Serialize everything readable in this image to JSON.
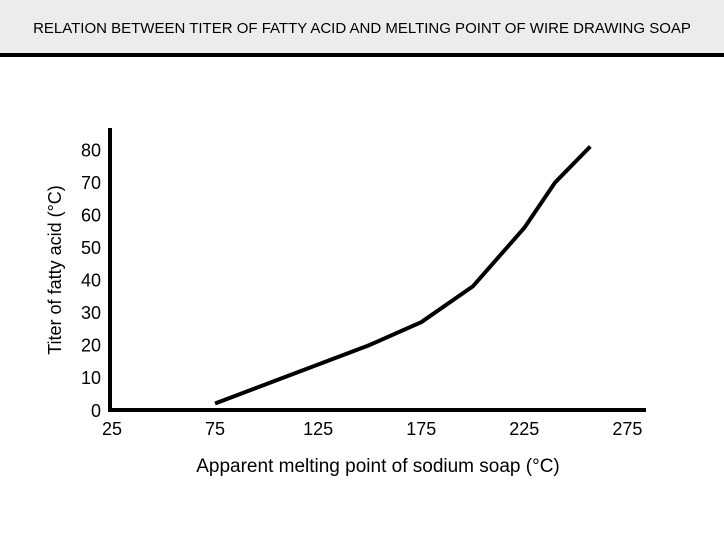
{
  "chart_data": {
    "type": "line",
    "title": "RELATION BETWEEN TITER OF FATTY ACID AND MELTING POINT OF WIRE DRAWING SOAP",
    "x_label": "Apparent melting point of sodium soap (°C)",
    "y_label": "Titer of fatty acid (°C)",
    "x": [
      75,
      100,
      125,
      150,
      175,
      200,
      225,
      240,
      257
    ],
    "series": [
      {
        "color": "#000000",
        "values": [
          2,
          8,
          14,
          20,
          27,
          38,
          56,
          70,
          81
        ]
      }
    ],
    "xlim": [
      25,
      285
    ],
    "xticks": [
      25,
      75,
      125,
      175,
      225,
      275
    ],
    "ylim": [
      0,
      87
    ],
    "yticks": [
      0,
      10,
      20,
      30,
      40,
      50,
      60,
      70,
      80
    ],
    "grid": false
  }
}
